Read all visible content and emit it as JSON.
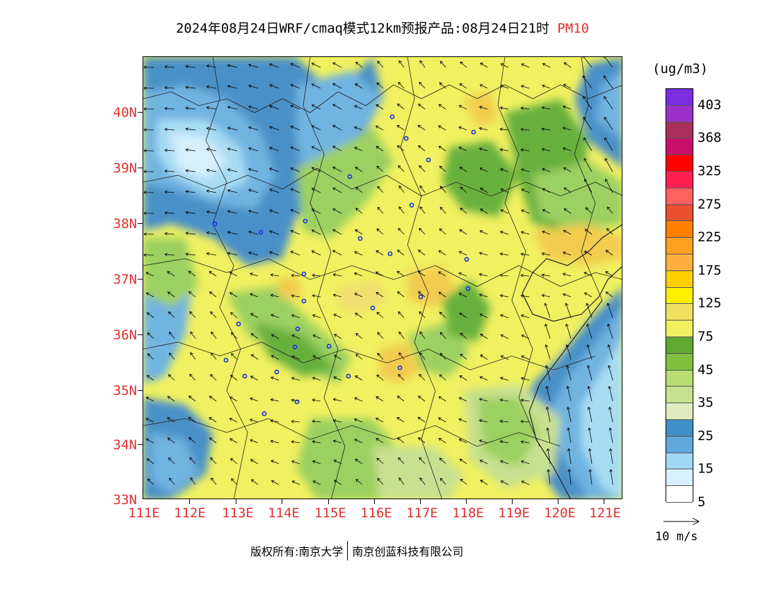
{
  "title": {
    "main": "2024年08月24日WRF/cmaq模式12km预报产品:08月24日21时",
    "species": "PM10"
  },
  "lat_labels": [
    "40N",
    "39N",
    "38N",
    "37N",
    "36N",
    "35N",
    "34N",
    "33N"
  ],
  "lon_labels": [
    "111E",
    "112E",
    "113E",
    "114E",
    "115E",
    "116E",
    "117E",
    "118E",
    "119E",
    "120E",
    "121E"
  ],
  "colorbar": {
    "unit": "(ug/m3)",
    "labels": [
      "403",
      "368",
      "325",
      "275",
      "225",
      "175",
      "125",
      "75",
      "45",
      "35",
      "25",
      "15",
      "5"
    ],
    "colors": [
      "#7a2ee0",
      "#9b30c8",
      "#a8305a",
      "#c8106a",
      "#ff0000",
      "#ff2050",
      "#ff6060",
      "#e85030",
      "#ff8000",
      "#ffa020",
      "#ffb040",
      "#ffd000",
      "#fff000",
      "#f0e060",
      "#f0f060",
      "#60a830",
      "#80c040",
      "#b8dc70",
      "#c8e090",
      "#e0ecc0",
      "#4090c8",
      "#60a8dc",
      "#a0d8f4",
      "#d8f0fc",
      "#ffffff"
    ]
  },
  "vector_legend": {
    "label": "10 m/s"
  },
  "copyright": {
    "label": "版权所有:",
    "org1": "南京大学",
    "org2": "南京创蓝科技有限公司"
  },
  "map_colors": {
    "background": "#f0f060",
    "light_yellow": "#f0e070",
    "orange_yellow": "#f2cc50",
    "green_dark": "#68b03c",
    "green_mid": "#9cd060",
    "green_light": "#c8e090",
    "blue_dark": "#4a90c8",
    "blue_mid": "#70b4e0",
    "blue_light": "#a8dcf4",
    "blue_pale": "#d8f0fc",
    "city_marker": "#1a2fe0",
    "boundary": "#202020"
  }
}
